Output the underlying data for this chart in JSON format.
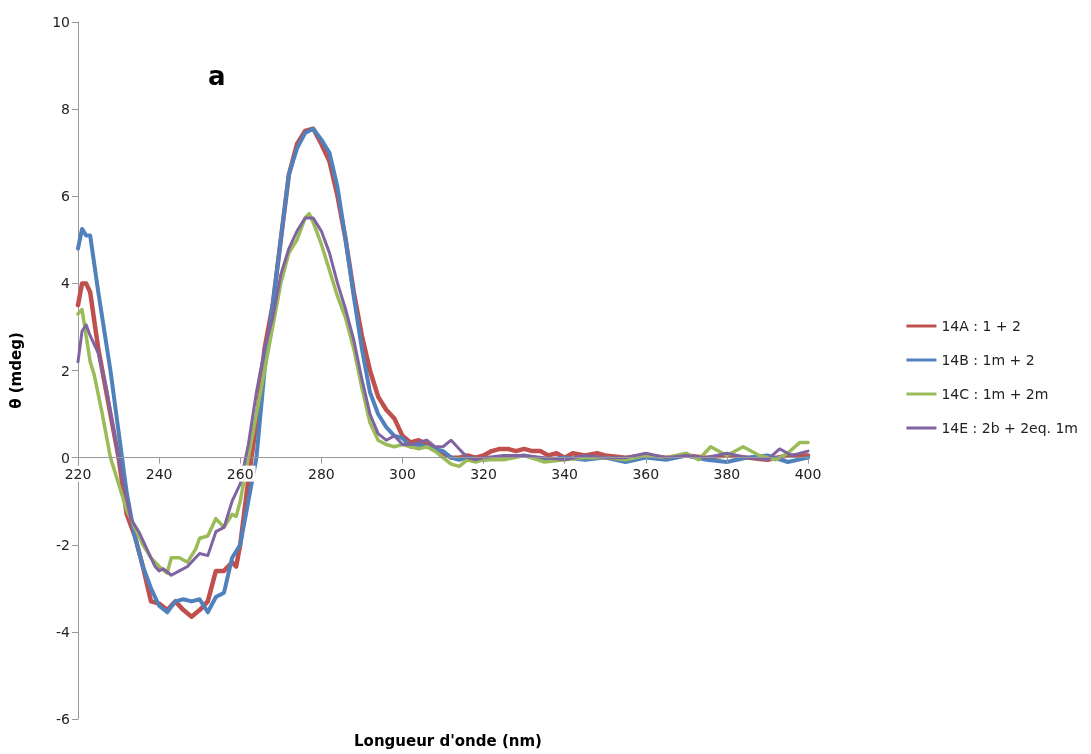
{
  "chart_data": {
    "type": "line",
    "xlabel": "Longueur d'onde (nm)",
    "ylabel": "θ (mdeg)",
    "annotations": [
      "a"
    ],
    "xlim": [
      220,
      400
    ],
    "xticks": [
      220,
      240,
      260,
      280,
      300,
      320,
      340,
      360,
      380,
      400
    ],
    "ylim": [
      -6,
      10
    ],
    "yticks": [
      -6,
      -4,
      -2,
      0,
      2,
      4,
      6,
      8,
      10
    ],
    "grid": false,
    "legend": "right",
    "marker": "none",
    "line_style": "solid",
    "series": [
      {
        "name": "14A : 1 + 2",
        "color": "#c0504d",
        "x": [
          220,
          221,
          222,
          223,
          225,
          228,
          230,
          232,
          234,
          236,
          238,
          240,
          242,
          244,
          246,
          248,
          250,
          252,
          254,
          256,
          258,
          259,
          260,
          262,
          264,
          266,
          268,
          270,
          272,
          274,
          276,
          278,
          280,
          282,
          284,
          286,
          288,
          290,
          292,
          294,
          296,
          298,
          300,
          302,
          304,
          306,
          308,
          310,
          312,
          314,
          316,
          318,
          320,
          322,
          324,
          326,
          328,
          330,
          332,
          334,
          336,
          338,
          340,
          342,
          345,
          348,
          350,
          355,
          360,
          365,
          370,
          375,
          380,
          385,
          390,
          395,
          400
        ],
        "values": [
          3.5,
          4.0,
          4.0,
          3.8,
          2.5,
          1.0,
          0,
          -1.3,
          -1.8,
          -2.5,
          -3.3,
          -3.35,
          -3.5,
          -3.3,
          -3.5,
          -3.65,
          -3.5,
          -3.3,
          -2.6,
          -2.6,
          -2.4,
          -2.5,
          -2.0,
          -0.5,
          0.8,
          2.5,
          3.5,
          5.0,
          6.5,
          7.2,
          7.5,
          7.55,
          7.2,
          6.8,
          6.0,
          5.0,
          3.8,
          2.8,
          2.0,
          1.4,
          1.1,
          0.9,
          0.5,
          0.35,
          0.4,
          0.3,
          0.2,
          0.1,
          0.0,
          0.0,
          0.05,
          0.0,
          0.05,
          0.15,
          0.2,
          0.2,
          0.15,
          0.2,
          0.15,
          0.15,
          0.05,
          0.1,
          0.0,
          0.1,
          0.05,
          0.1,
          0.05,
          0.0,
          0.05,
          0.0,
          0.05,
          0.0,
          0.05,
          0.0,
          -0.05,
          0.05,
          0.05
        ]
      },
      {
        "name": "14B : 1m + 2",
        "color": "#4f81bd",
        "x": [
          220,
          221,
          222,
          223,
          225,
          228,
          230,
          232,
          234,
          236,
          238,
          240,
          242,
          244,
          246,
          248,
          250,
          252,
          254,
          256,
          258,
          260,
          262,
          264,
          266,
          268,
          270,
          272,
          274,
          276,
          278,
          280,
          282,
          284,
          286,
          288,
          290,
          292,
          294,
          296,
          298,
          300,
          302,
          304,
          306,
          308,
          310,
          312,
          314,
          316,
          320,
          325,
          330,
          335,
          340,
          345,
          350,
          355,
          360,
          365,
          370,
          375,
          380,
          385,
          390,
          395,
          400
        ],
        "values": [
          4.8,
          5.25,
          5.1,
          5.1,
          3.8,
          2.0,
          0.6,
          -0.8,
          -1.8,
          -2.5,
          -3.0,
          -3.4,
          -3.55,
          -3.3,
          -3.25,
          -3.3,
          -3.25,
          -3.55,
          -3.2,
          -3.1,
          -2.3,
          -2.0,
          -1.0,
          0.0,
          2.0,
          3.5,
          5.0,
          6.5,
          7.1,
          7.45,
          7.55,
          7.3,
          7.0,
          6.2,
          5.0,
          3.7,
          2.5,
          1.5,
          1.0,
          0.7,
          0.5,
          0.45,
          0.25,
          0.3,
          0.25,
          0.2,
          0.15,
          0.0,
          -0.05,
          0.0,
          -0.05,
          0.0,
          0.05,
          -0.05,
          0.0,
          -0.05,
          0.0,
          -0.1,
          0.0,
          -0.05,
          0.05,
          -0.05,
          -0.1,
          0.0,
          0.05,
          -0.1,
          0.0
        ]
      },
      {
        "name": "14C : 1m + 2m",
        "color": "#9bbb59",
        "x": [
          220,
          221,
          222,
          223,
          224,
          226,
          228,
          230,
          232,
          234,
          236,
          238,
          240,
          242,
          243,
          245,
          247,
          249,
          250,
          252,
          254,
          256,
          258,
          259,
          260,
          262,
          264,
          266,
          268,
          270,
          272,
          274,
          276,
          277,
          278,
          280,
          282,
          284,
          286,
          288,
          290,
          292,
          294,
          296,
          298,
          300,
          302,
          304,
          306,
          308,
          310,
          312,
          314,
          316,
          318,
          320,
          325,
          330,
          335,
          340,
          345,
          350,
          355,
          360,
          365,
          370,
          373,
          376,
          380,
          384,
          388,
          392,
          395,
          398,
          400
        ],
        "values": [
          3.3,
          3.4,
          2.8,
          2.2,
          1.9,
          1.0,
          0.0,
          -0.6,
          -1.2,
          -1.6,
          -2.0,
          -2.3,
          -2.5,
          -2.65,
          -2.3,
          -2.3,
          -2.4,
          -2.1,
          -1.85,
          -1.8,
          -1.4,
          -1.6,
          -1.3,
          -1.35,
          -1.0,
          0.0,
          1.0,
          2.0,
          3.0,
          4.0,
          4.7,
          5.0,
          5.5,
          5.6,
          5.4,
          4.9,
          4.3,
          3.7,
          3.2,
          2.5,
          1.6,
          0.8,
          0.4,
          0.3,
          0.25,
          0.3,
          0.25,
          0.2,
          0.25,
          0.15,
          0.0,
          -0.15,
          -0.2,
          -0.05,
          -0.1,
          -0.05,
          -0.05,
          0.05,
          -0.1,
          -0.05,
          0.0,
          0.0,
          -0.05,
          0.05,
          0.0,
          0.1,
          -0.05,
          0.25,
          0.05,
          0.25,
          0.05,
          -0.05,
          0.1,
          0.35,
          0.35
        ]
      },
      {
        "name": "14E : 2b + 2eq. 1m",
        "color": "#8064a2",
        "x": [
          220,
          221,
          222,
          223,
          225,
          227,
          229,
          231,
          233,
          235,
          237,
          239,
          240,
          241,
          243,
          245,
          247,
          249,
          250,
          252,
          254,
          256,
          258,
          260,
          262,
          264,
          266,
          268,
          270,
          272,
          274,
          276,
          278,
          280,
          282,
          284,
          286,
          288,
          290,
          292,
          294,
          296,
          298,
          300,
          302,
          304,
          306,
          308,
          310,
          312,
          314,
          316,
          318,
          320,
          325,
          330,
          335,
          340,
          345,
          350,
          355,
          360,
          365,
          370,
          375,
          380,
          385,
          390,
          393,
          396,
          400
        ],
        "values": [
          2.2,
          2.9,
          3.05,
          2.8,
          2.4,
          1.6,
          0.5,
          -0.5,
          -1.4,
          -1.7,
          -2.1,
          -2.5,
          -2.6,
          -2.55,
          -2.7,
          -2.6,
          -2.5,
          -2.3,
          -2.2,
          -2.25,
          -1.7,
          -1.6,
          -1.0,
          -0.6,
          0.3,
          1.5,
          2.5,
          3.2,
          4.2,
          4.8,
          5.2,
          5.5,
          5.5,
          5.2,
          4.7,
          4.0,
          3.4,
          2.7,
          1.8,
          1.0,
          0.55,
          0.4,
          0.5,
          0.3,
          0.3,
          0.35,
          0.4,
          0.25,
          0.25,
          0.4,
          0.2,
          0.0,
          -0.05,
          0.0,
          0.05,
          0.05,
          0.0,
          -0.05,
          0.05,
          0.0,
          0.0,
          0.1,
          0.0,
          0.05,
          0.0,
          0.1,
          0.0,
          -0.05,
          0.2,
          0.05,
          0.15
        ]
      }
    ]
  }
}
